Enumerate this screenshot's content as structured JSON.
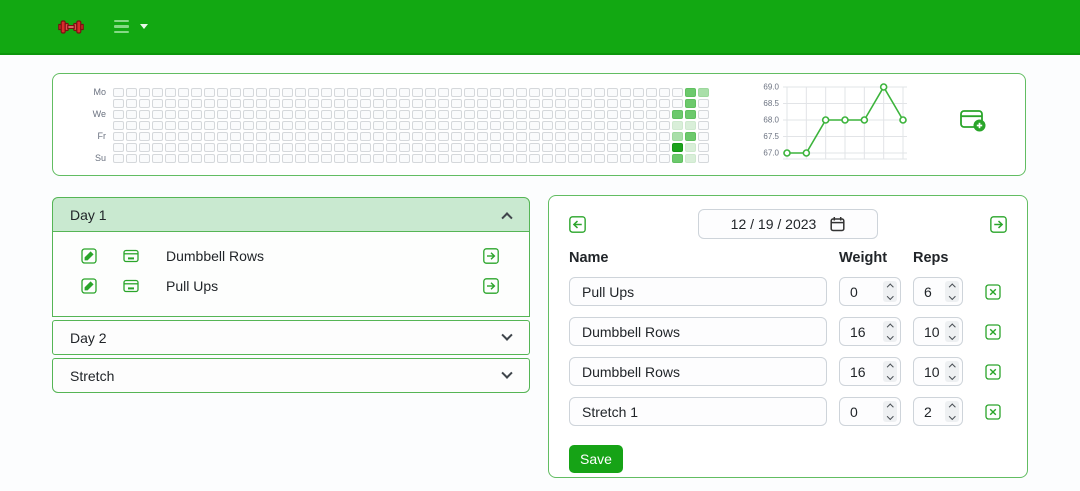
{
  "colors": {
    "header_green": "#12a812",
    "accent_green": "#2aa52a",
    "panel_border": "#62bd62",
    "day1_header_bg": "#c9e9d0",
    "save_bg": "#16a316",
    "heat_levels": {
      "1": "#d9efd9",
      "2": "#a9dfa9",
      "3": "#6cc96c",
      "4": "#1ba31b"
    }
  },
  "header": {
    "logo_icon": "dumbbell-logo",
    "menu_icon": "hamburger-menu"
  },
  "heatmap": {
    "day_labels": [
      "Mo",
      "We",
      "Fr",
      "Su"
    ],
    "label_rows": [
      0,
      2,
      4,
      6
    ],
    "rows": 7,
    "cols": 46,
    "cells": [
      {
        "col": 43,
        "row": 2,
        "level": 3
      },
      {
        "col": 43,
        "row": 3,
        "level": 1
      },
      {
        "col": 43,
        "row": 4,
        "level": 2
      },
      {
        "col": 43,
        "row": 5,
        "level": 4
      },
      {
        "col": 43,
        "row": 6,
        "level": 3
      },
      {
        "col": 44,
        "row": 0,
        "level": 3
      },
      {
        "col": 44,
        "row": 1,
        "level": 3
      },
      {
        "col": 44,
        "row": 2,
        "level": 3
      },
      {
        "col": 44,
        "row": 3,
        "level": 1
      },
      {
        "col": 44,
        "row": 4,
        "level": 3
      },
      {
        "col": 44,
        "row": 5,
        "level": 1
      },
      {
        "col": 44,
        "row": 6,
        "level": 1
      },
      {
        "col": 45,
        "row": 0,
        "level": 2
      }
    ]
  },
  "chart_data": {
    "type": "line",
    "title": "",
    "xlabel": "",
    "ylabel": "",
    "series": [
      {
        "name": "weight",
        "values": [
          67.0,
          67.0,
          68.0,
          68.0,
          68.0,
          69.0,
          68.0
        ]
      }
    ],
    "yticks": [
      67.0,
      67.5,
      68.0,
      68.5,
      69.0
    ],
    "ylim": [
      67.0,
      69.0
    ],
    "grid": true,
    "legend": false,
    "line_color": "#3cb43c",
    "marker": "open-circle"
  },
  "accordion": {
    "sections": [
      {
        "label": "Day 1",
        "expanded": true,
        "items": [
          {
            "name": "Dumbbell Rows"
          },
          {
            "name": "Pull Ups"
          }
        ]
      },
      {
        "label": "Day 2",
        "expanded": false
      },
      {
        "label": "Stretch",
        "expanded": false
      }
    ]
  },
  "log_panel": {
    "date_display": "12 / 19 / 2023",
    "columns": {
      "name": "Name",
      "weight": "Weight",
      "reps": "Reps"
    },
    "rows": [
      {
        "name": "Pull Ups",
        "weight": "0",
        "reps": "6"
      },
      {
        "name": "Dumbbell Rows",
        "weight": "16",
        "reps": "10"
      },
      {
        "name": "Dumbbell Rows",
        "weight": "16",
        "reps": "10"
      },
      {
        "name": "Stretch 1",
        "weight": "0",
        "reps": "2"
      }
    ],
    "save_label": "Save"
  }
}
